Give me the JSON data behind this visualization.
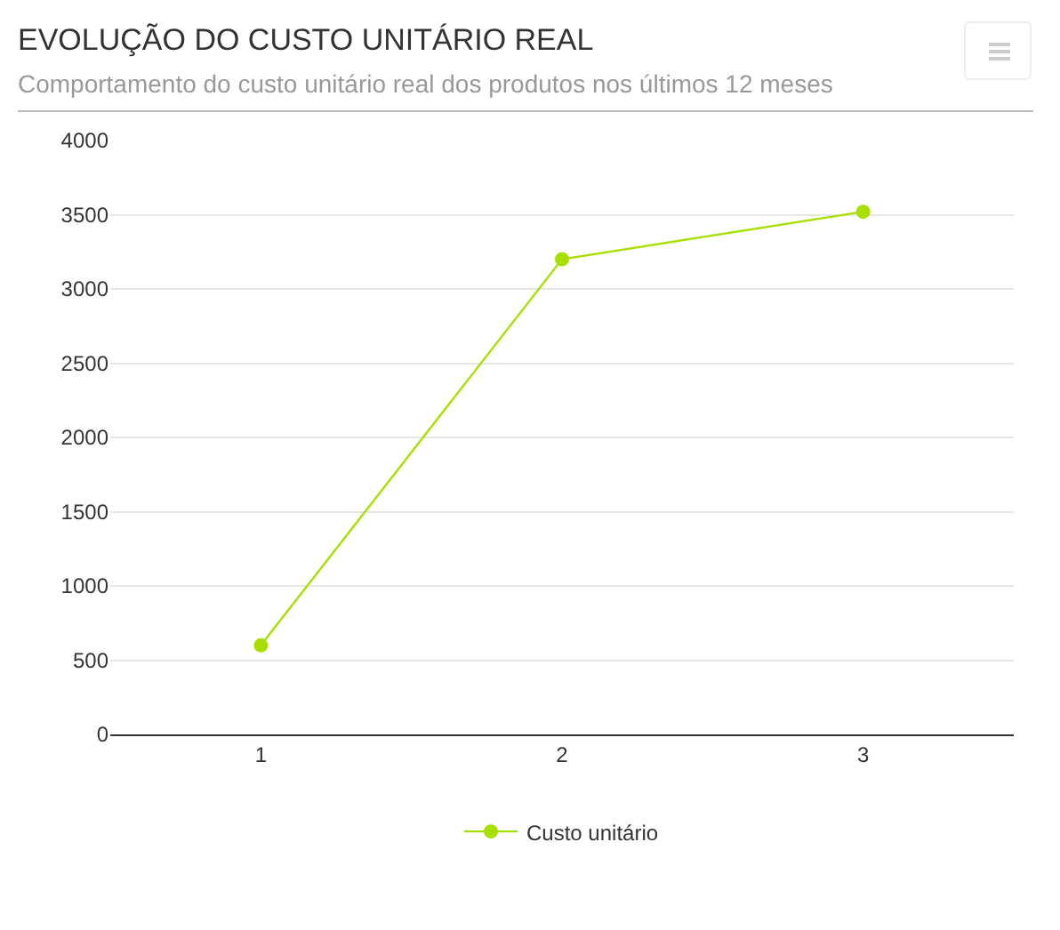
{
  "chart_data": {
    "type": "line",
    "title": "EVOLUÇÃO DO CUSTO UNITÁRIO REAL",
    "subtitle": "Comportamento do custo unitário real dos produtos nos últimos 12 meses",
    "categories": [
      "1",
      "2",
      "3"
    ],
    "series": [
      {
        "name": "Custo unitário",
        "color": "#a7e000",
        "values": [
          600,
          3200,
          3520
        ]
      }
    ],
    "ylim": [
      0,
      4000
    ],
    "yticks": [
      0,
      500,
      1000,
      1500,
      2000,
      2500,
      3000,
      3500,
      4000
    ],
    "grid": "y",
    "legend": "bottom",
    "marker": "circle",
    "line_style": "solid"
  }
}
